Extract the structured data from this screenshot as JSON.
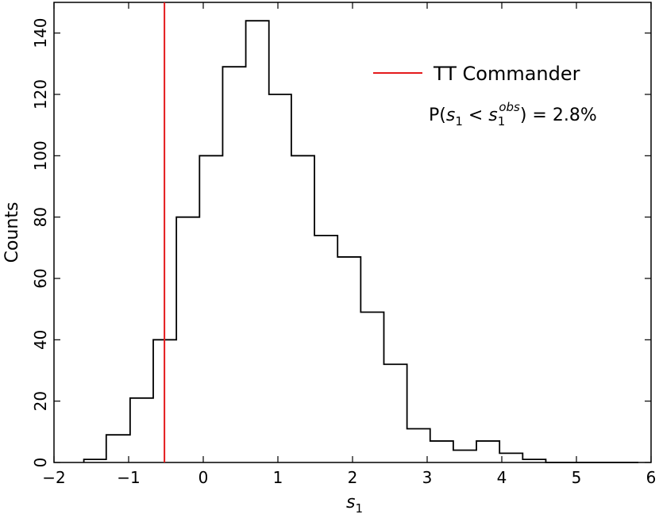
{
  "chart_data": {
    "type": "histogram",
    "xlabel": "s",
    "xlabel_sub": "1",
    "ylabel": "Counts",
    "xlim": [
      -2,
      6
    ],
    "ylim": [
      0,
      150
    ],
    "x_ticks": [
      -2,
      -1,
      0,
      1,
      2,
      3,
      4,
      5,
      6
    ],
    "y_ticks": [
      0,
      20,
      40,
      60,
      80,
      100,
      120,
      140
    ],
    "bin_edges": [
      -1.6,
      -1.3,
      -0.98,
      -0.67,
      -0.36,
      -0.05,
      0.26,
      0.57,
      0.88,
      1.18,
      1.49,
      1.8,
      2.11,
      2.42,
      2.73,
      3.04,
      3.35,
      3.66,
      3.97,
      4.28,
      4.59,
      4.9,
      5.21,
      5.52,
      5.83
    ],
    "counts": [
      1,
      9,
      21,
      40,
      80,
      100,
      129,
      144,
      120,
      100,
      74,
      67,
      49,
      32,
      11,
      7,
      4,
      7,
      3,
      1,
      0,
      0,
      0,
      0
    ],
    "series": [
      {
        "name": "TT Commander",
        "type": "vline",
        "x": -0.52,
        "color": "#e41a1c"
      }
    ],
    "annotation": {
      "prefix": "P(",
      "s_var": "s",
      "sub1": "1",
      "lt": " < ",
      "sup": "obs",
      "suffix": ") = 2.8%"
    },
    "legend": "top-right",
    "grid": false,
    "colors": {
      "histogram": "#000000",
      "line": "#e41a1c"
    }
  }
}
